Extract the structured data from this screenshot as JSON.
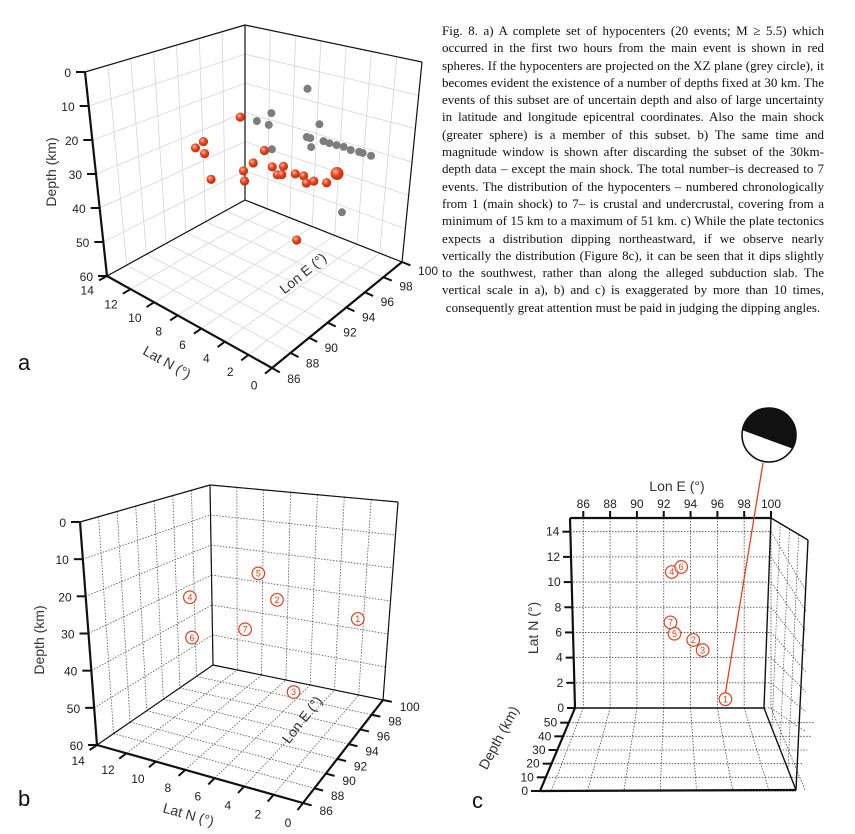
{
  "caption": "Fig. 8. a) A complete set of hypocenters (20 events; M ≥ 5.5) which occurred in the first two hours from the main event is shown in red spheres. If the hypocenters are projected on the XZ plane (grey circle), it becomes evident the existence of a number of depths fixed at 30 km. The events of this subset are of uncertain depth and also of large uncertainty in latitude and longitude epicentral coordinates. Also the main shock (greater sphere) is a member of this subset. b) The same time and magnitude window is shown after discarding the subset of the 30km-depth data – except the main shock. The total number–is decreased to 7 events. The distribution of the hypocenters – numbered chronologically from 1 (main shock) to 7– is crustal and undercrustal, covering from a minimum of 15 km to a maximum of 51 km. c) While the plate tectonics expects a distribution dipping northeastward, if we observe nearly vertically the distribution (Figure 8c), it can be seen that it dips slightly to the southwest, rather than along the alleged subduction slab. The vertical scale in a), b) and c) is exaggerated by more than 10 times, consequently great attention must be paid in judging the dipping angles.",
  "panel_labels": {
    "a": "a",
    "b": "b",
    "c": "c"
  },
  "chart_data": [
    {
      "panel": "a",
      "type": "scatter",
      "projection": "3d",
      "xlabel": "Lon E (°)",
      "ylabel": "Lat N (°)",
      "zlabel": "Depth (km)",
      "lon_range": [
        86,
        100
      ],
      "lat_range": [
        0,
        14
      ],
      "depth_range": [
        0,
        60
      ],
      "depth_axis_inverted": true,
      "lon_ticks": [
        "86",
        "88",
        "90",
        "92",
        "94",
        "96",
        "98",
        "100"
      ],
      "lat_ticks": [
        "0",
        "2",
        "4",
        "6",
        "8",
        "10",
        "12",
        "14"
      ],
      "depth_ticks": [
        "0",
        "10",
        "20",
        "30",
        "40",
        "50",
        "60"
      ],
      "grid": true,
      "series": [
        {
          "color": "#e2401e",
          "points": [
            {
              "lon": 91.7,
              "lat": 7.2,
              "depth": 12
            },
            {
              "lon": 94.6,
              "lat": 12.7,
              "depth": 30
            },
            {
              "lon": 93.5,
              "lat": 12.4,
              "depth": 30
            },
            {
              "lon": 93.2,
              "lat": 11.4,
              "depth": 30
            },
            {
              "lon": 90.5,
              "lat": 8.6,
              "depth": 30
            },
            {
              "lon": 96.0,
              "lat": 8.9,
              "depth": 30
            },
            {
              "lon": 94.1,
              "lat": 8.2,
              "depth": 30
            },
            {
              "lon": 92.8,
              "lat": 7.9,
              "depth": 30
            },
            {
              "lon": 91.7,
              "lat": 6.9,
              "depth": 30
            },
            {
              "lon": 94.4,
              "lat": 6.9,
              "depth": 30
            },
            {
              "lon": 94.9,
              "lat": 6.4,
              "depth": 30
            },
            {
              "lon": 93.7,
              "lat": 5.9,
              "depth": 30
            },
            {
              "lon": 93.9,
              "lat": 5.7,
              "depth": 30
            },
            {
              "lon": 94.5,
              "lat": 5.1,
              "depth": 30
            },
            {
              "lon": 94.6,
              "lat": 4.5,
              "depth": 30
            },
            {
              "lon": 93.9,
              "lat": 3.7,
              "depth": 30
            },
            {
              "lon": 94.4,
              "lat": 3.5,
              "depth": 30
            },
            {
              "lon": 94.7,
              "lat": 2.7,
              "depth": 30
            },
            {
              "lon": 96.1,
              "lat": 3.0,
              "depth": 30,
              "main_shock": true
            },
            {
              "lon": 95.2,
              "lat": 5.4,
              "depth": 51
            }
          ]
        },
        {
          "color": "#7d7d7d",
          "points": [
            {
              "lon": 100,
              "lat": 8.9,
              "depth": 16.4
            },
            {
              "lon": 100,
              "lat": 11.8,
              "depth": 27.6
            },
            {
              "lon": 100,
              "lat": 13.0,
              "depth": 31.7
            },
            {
              "lon": 100,
              "lat": 12.0,
              "depth": 31.8
            },
            {
              "lon": 100,
              "lat": 7.8,
              "depth": 26.7
            },
            {
              "lon": 100,
              "lat": 8.8,
              "depth": 32
            },
            {
              "lon": 100,
              "lat": 8.5,
              "depth": 32
            },
            {
              "lon": 100,
              "lat": 8.4,
              "depth": 34.8
            },
            {
              "lon": 100,
              "lat": 11.7,
              "depth": 39.6
            },
            {
              "lon": 100,
              "lat": 7.4,
              "depth": 31.7
            },
            {
              "lon": 100,
              "lat": 6.9,
              "depth": 31.8
            },
            {
              "lon": 100,
              "lat": 6.3,
              "depth": 31.7
            },
            {
              "lon": 100,
              "lat": 5.7,
              "depth": 31.6
            },
            {
              "lon": 100,
              "lat": 5.1,
              "depth": 31.9
            },
            {
              "lon": 100,
              "lat": 4.4,
              "depth": 31.7
            },
            {
              "lon": 100,
              "lat": 4.1,
              "depth": 31.7
            },
            {
              "lon": 100,
              "lat": 3.4,
              "depth": 31.8
            },
            {
              "lon": 100,
              "lat": 5.5,
              "depth": 52
            }
          ]
        }
      ]
    },
    {
      "panel": "b",
      "type": "scatter",
      "projection": "3d",
      "xlabel": "Lon E (°)",
      "ylabel": "Lat N (°)",
      "zlabel": "Depth (km)",
      "lon_range": [
        86,
        100
      ],
      "lat_range": [
        0,
        14
      ],
      "depth_range": [
        0,
        60
      ],
      "depth_axis_inverted": true,
      "lon_ticks": [
        "86",
        "88",
        "90",
        "92",
        "94",
        "96",
        "98",
        "100"
      ],
      "lat_ticks": [
        "0",
        "2",
        "4",
        "6",
        "8",
        "10",
        "12",
        "14"
      ],
      "depth_ticks": [
        "0",
        "10",
        "20",
        "30",
        "40",
        "50",
        "60"
      ],
      "grid": true,
      "color": "#e2401e",
      "events": [
        {
          "label": "1",
          "lon": 96.6,
          "lat": 0.7,
          "depth": 30
        },
        {
          "label": "2",
          "lon": 94.2,
          "lat": 5.4,
          "depth": 24
        },
        {
          "label": "3",
          "lon": 94.9,
          "lat": 4.6,
          "depth": 51
        },
        {
          "label": "4",
          "lon": 92.6,
          "lat": 10.8,
          "depth": 25
        },
        {
          "label": "5",
          "lon": 92.8,
          "lat": 5.9,
          "depth": 15
        },
        {
          "label": "6",
          "lon": 93.3,
          "lat": 11.2,
          "depth": 38
        },
        {
          "label": "7",
          "lon": 92.5,
          "lat": 6.8,
          "depth": 31
        }
      ]
    },
    {
      "panel": "c",
      "type": "scatter",
      "projection": "3d-top-view",
      "xlabel": "Lon E (°)",
      "ylabel": "Lat N (°)",
      "zlabel": "Depth (km)",
      "lon_range": [
        86,
        100
      ],
      "lat_range": [
        0,
        14
      ],
      "depth_range": [
        0,
        60
      ],
      "lon_ticks": [
        "86",
        "88",
        "90",
        "92",
        "94",
        "96",
        "98",
        "100"
      ],
      "lat_ticks": [
        "0",
        "2",
        "4",
        "6",
        "8",
        "10",
        "12",
        "14"
      ],
      "depth_ticks": [
        "0",
        "10",
        "20",
        "30",
        "40",
        "50"
      ],
      "grid": true,
      "color": "#e2401e",
      "focal_mechanism_event": "1",
      "events": [
        {
          "label": "1",
          "lon": 96.6,
          "lat": 0.7
        },
        {
          "label": "2",
          "lon": 94.2,
          "lat": 5.4
        },
        {
          "label": "3",
          "lon": 94.9,
          "lat": 4.6
        },
        {
          "label": "4",
          "lon": 92.6,
          "lat": 10.8
        },
        {
          "label": "5",
          "lon": 92.8,
          "lat": 5.9
        },
        {
          "label": "6",
          "lon": 93.3,
          "lat": 11.2
        },
        {
          "label": "7",
          "lon": 92.5,
          "lat": 6.8
        }
      ]
    }
  ]
}
